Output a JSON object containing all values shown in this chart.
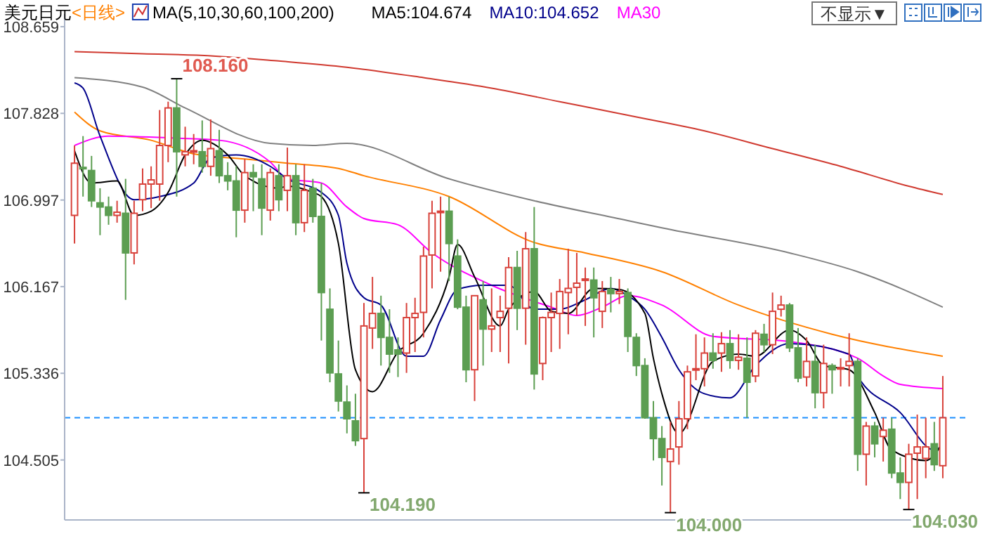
{
  "chart_data": {
    "type": "candlestick",
    "title": "美元日元",
    "subtitle": "<日线>",
    "legend_title": "MA(5,10,30,60,100,200)",
    "legend": "top left",
    "categories": [
      null,
      null,
      null,
      null,
      null,
      null,
      null,
      null,
      null,
      null,
      null,
      null,
      null,
      null,
      null,
      null,
      null,
      null,
      null,
      null,
      null,
      null,
      null,
      null,
      null,
      null,
      null,
      null,
      null,
      null,
      null,
      null,
      null,
      null,
      null,
      null,
      null,
      null,
      null,
      null,
      null,
      null,
      null,
      null,
      null,
      null,
      null,
      null,
      null,
      null,
      null,
      null,
      null,
      null,
      null,
      null,
      null,
      null,
      null,
      null,
      null,
      null,
      null,
      null,
      null,
      null,
      null,
      null,
      null,
      null,
      null,
      null,
      null,
      null,
      null,
      null,
      null,
      null,
      null,
      null,
      null,
      null,
      null,
      null,
      null,
      null,
      null,
      null,
      null,
      null,
      null,
      null,
      null,
      null,
      null,
      null,
      null,
      null,
      null,
      null,
      null,
      null,
      null
    ],
    "ylim": [
      103.93,
      108.78
    ],
    "yticks": [
      108.659,
      107.828,
      106.997,
      106.167,
      105.336,
      104.505
    ],
    "ohlc": [
      [
        106.85,
        107.52,
        106.58,
        107.35
      ],
      [
        107.31,
        107.61,
        107.03,
        107.3
      ],
      [
        107.28,
        107.42,
        106.93,
        106.99
      ],
      [
        106.97,
        107.11,
        106.66,
        106.93
      ],
      [
        106.93,
        107.03,
        106.76,
        106.85
      ],
      [
        106.85,
        106.99,
        106.78,
        106.88
      ],
      [
        106.87,
        107.2,
        106.04,
        106.49
      ],
      [
        106.49,
        106.99,
        106.38,
        106.87
      ],
      [
        107.0,
        107.3,
        106.89,
        107.15
      ],
      [
        107.15,
        107.32,
        106.92,
        107.19
      ],
      [
        107.15,
        107.86,
        106.99,
        107.52
      ],
      [
        107.52,
        107.94,
        107.36,
        107.88
      ],
      [
        107.88,
        108.16,
        107.03,
        107.46
      ],
      [
        107.43,
        107.7,
        107.32,
        107.46
      ],
      [
        107.46,
        107.63,
        107.34,
        107.47
      ],
      [
        107.46,
        107.76,
        107.26,
        107.32
      ],
      [
        107.32,
        107.77,
        107.23,
        107.49
      ],
      [
        107.47,
        107.67,
        107.16,
        107.23
      ],
      [
        107.23,
        107.36,
        107.09,
        107.18
      ],
      [
        107.18,
        107.32,
        106.64,
        106.9
      ],
      [
        106.9,
        107.39,
        106.78,
        107.26
      ],
      [
        107.26,
        107.34,
        106.89,
        107.22
      ],
      [
        107.2,
        107.34,
        106.66,
        106.92
      ],
      [
        106.9,
        107.3,
        106.8,
        107.26
      ],
      [
        107.23,
        107.34,
        106.89,
        107.0
      ],
      [
        107.09,
        107.5,
        106.89,
        107.23
      ],
      [
        107.23,
        107.34,
        106.66,
        106.78
      ],
      [
        106.78,
        107.34,
        106.69,
        107.09
      ],
      [
        107.11,
        107.2,
        106.78,
        106.84
      ],
      [
        106.84,
        107.16,
        105.65,
        106.11
      ],
      [
        105.95,
        106.15,
        105.25,
        105.34
      ],
      [
        105.33,
        105.65,
        104.97,
        105.07
      ],
      [
        105.06,
        105.22,
        104.76,
        104.9
      ],
      [
        104.88,
        105.14,
        104.64,
        104.69
      ],
      [
        104.71,
        106.01,
        104.19,
        105.79
      ],
      [
        105.77,
        106.26,
        105.57,
        105.91
      ],
      [
        105.91,
        106.08,
        105.41,
        105.68
      ],
      [
        105.68,
        105.95,
        105.34,
        105.52
      ],
      [
        105.56,
        105.68,
        105.3,
        105.52
      ],
      [
        105.53,
        106.01,
        105.34,
        105.87
      ],
      [
        105.87,
        106.06,
        105.54,
        105.91
      ],
      [
        105.92,
        106.55,
        105.68,
        106.46
      ],
      [
        106.47,
        106.99,
        106.15,
        106.87
      ],
      [
        106.88,
        107.03,
        106.31,
        106.89
      ],
      [
        106.89,
        107.03,
        106.22,
        106.58
      ],
      [
        106.46,
        106.62,
        105.95,
        105.97
      ],
      [
        105.97,
        106.08,
        105.25,
        105.37
      ],
      [
        105.37,
        106.08,
        105.07,
        106.08
      ],
      [
        106.04,
        106.22,
        105.41,
        105.76
      ],
      [
        105.76,
        106.15,
        105.54,
        105.79
      ],
      [
        105.87,
        106.08,
        105.54,
        105.93
      ],
      [
        105.96,
        106.45,
        105.43,
        106.35
      ],
      [
        106.35,
        106.51,
        105.75,
        105.96
      ],
      [
        105.96,
        106.69,
        105.61,
        106.53
      ],
      [
        106.53,
        106.93,
        105.18,
        105.33
      ],
      [
        105.43,
        105.88,
        105.27,
        105.87
      ],
      [
        105.87,
        106.11,
        105.54,
        105.92
      ],
      [
        105.91,
        106.24,
        105.57,
        106.12
      ],
      [
        106.11,
        106.53,
        105.71,
        106.15
      ],
      [
        106.16,
        106.49,
        105.89,
        106.2
      ],
      [
        106.23,
        106.35,
        105.79,
        106.24
      ],
      [
        106.23,
        106.35,
        105.68,
        106.06
      ],
      [
        105.93,
        106.22,
        105.77,
        106.12
      ],
      [
        106.14,
        106.26,
        105.92,
        106.1
      ],
      [
        106.1,
        106.24,
        106.0,
        106.12
      ],
      [
        106.11,
        106.15,
        105.54,
        105.69
      ],
      [
        105.68,
        105.72,
        105.31,
        105.41
      ],
      [
        105.41,
        105.48,
        104.9,
        104.91
      ],
      [
        104.91,
        105.07,
        104.5,
        104.71
      ],
      [
        104.71,
        104.83,
        104.26,
        104.53
      ],
      [
        104.49,
        104.87,
        104.0,
        104.61
      ],
      [
        104.63,
        105.07,
        104.46,
        104.9
      ],
      [
        104.9,
        105.41,
        104.8,
        105.35
      ],
      [
        105.37,
        105.71,
        105.27,
        105.38
      ],
      [
        105.38,
        105.68,
        105.21,
        105.53
      ],
      [
        105.53,
        105.72,
        105.38,
        105.46
      ],
      [
        105.53,
        105.73,
        105.35,
        105.62
      ],
      [
        105.62,
        105.75,
        105.38,
        105.46
      ],
      [
        105.46,
        105.71,
        105.37,
        105.49
      ],
      [
        105.48,
        105.68,
        104.91,
        105.25
      ],
      [
        105.31,
        105.75,
        105.25,
        105.72
      ],
      [
        105.71,
        105.81,
        105.54,
        105.61
      ],
      [
        105.61,
        106.11,
        105.52,
        105.93
      ],
      [
        105.95,
        106.08,
        105.88,
        105.99
      ],
      [
        105.99,
        106.01,
        105.54,
        105.58
      ],
      [
        105.58,
        105.77,
        105.25,
        105.29
      ],
      [
        105.3,
        105.68,
        105.21,
        105.45
      ],
      [
        105.45,
        105.61,
        105.0,
        105.15
      ],
      [
        105.15,
        105.61,
        105.0,
        105.43
      ],
      [
        105.41,
        105.43,
        105.14,
        105.37
      ],
      [
        105.38,
        105.48,
        105.21,
        105.39
      ],
      [
        105.41,
        105.72,
        105.21,
        105.45
      ],
      [
        105.45,
        105.48,
        104.4,
        104.56
      ],
      [
        104.56,
        104.87,
        104.26,
        104.83
      ],
      [
        104.83,
        104.87,
        104.53,
        104.66
      ],
      [
        104.73,
        104.91,
        104.49,
        104.79
      ],
      [
        104.8,
        104.91,
        104.33,
        104.38
      ],
      [
        104.38,
        104.53,
        104.13,
        104.29
      ],
      [
        104.29,
        104.66,
        104.03,
        104.56
      ],
      [
        104.57,
        104.94,
        104.13,
        104.63
      ],
      [
        104.52,
        104.91,
        104.33,
        104.63
      ],
      [
        104.66,
        104.87,
        104.4,
        104.46
      ],
      [
        104.45,
        105.31,
        104.33,
        104.91
      ]
    ],
    "colors": [
      "#d8413a",
      "#5c9e52",
      "#5c9e52",
      "#5c9e52",
      "#5c9e52",
      "#d8413a",
      "#5c9e52",
      "#d8413a",
      "#d8413a",
      "#d8413a",
      "#d8413a",
      "#d8413a",
      "#5c9e52",
      "#d8413a",
      "#d8413a",
      "#5c9e52",
      "#d8413a",
      "#5c9e52",
      "#5c9e52",
      "#5c9e52",
      "#d8413a",
      "#5c9e52",
      "#5c9e52",
      "#d8413a",
      "#5c9e52",
      "#d8413a",
      "#5c9e52",
      "#d8413a",
      "#5c9e52",
      "#5c9e52",
      "#5c9e52",
      "#5c9e52",
      "#5c9e52",
      "#5c9e52",
      "#d8413a",
      "#d8413a",
      "#5c9e52",
      "#5c9e52",
      "#5c9e52",
      "#d8413a",
      "#d8413a",
      "#d8413a",
      "#d8413a",
      "#d8413a",
      "#5c9e52",
      "#5c9e52",
      "#5c9e52",
      "#d8413a",
      "#5c9e52",
      "#d8413a",
      "#d8413a",
      "#d8413a",
      "#5c9e52",
      "#d8413a",
      "#5c9e52",
      "#d8413a",
      "#d8413a",
      "#d8413a",
      "#d8413a",
      "#d8413a",
      "#d8413a",
      "#5c9e52",
      "#d8413a",
      "#5c9e52",
      "#d8413a",
      "#5c9e52",
      "#5c9e52",
      "#5c9e52",
      "#5c9e52",
      "#5c9e52",
      "#d8413a",
      "#d8413a",
      "#d8413a",
      "#d8413a",
      "#d8413a",
      "#5c9e52",
      "#d8413a",
      "#5c9e52",
      "#d8413a",
      "#5c9e52",
      "#d8413a",
      "#5c9e52",
      "#d8413a",
      "#d8413a",
      "#5c9e52",
      "#5c9e52",
      "#d8413a",
      "#5c9e52",
      "#d8413a",
      "#5c9e52",
      "#d8413a",
      "#d8413a",
      "#5c9e52",
      "#d8413a",
      "#5c9e52",
      "#d8413a",
      "#5c9e52",
      "#5c9e52",
      "#d8413a",
      "#d8413a",
      "#d8413a",
      "#5c9e52",
      "#d8413a"
    ],
    "series": [
      {
        "type": "line",
        "color": "#d03a30",
        "values": [
          108.42,
          null,
          null,
          null,
          null,
          null,
          null,
          null,
          108.4,
          null,
          null,
          null,
          null,
          null,
          null,
          null,
          108.38,
          null,
          null,
          null,
          null,
          null,
          null,
          null,
          108.33,
          null,
          null,
          null,
          null,
          null,
          null,
          null,
          108.27,
          null,
          null,
          null,
          null,
          null,
          null,
          null,
          null,
          108.17,
          null,
          null,
          null,
          null,
          null,
          null,
          null,
          108.07,
          null,
          null,
          null,
          null,
          null,
          null,
          null,
          107.94,
          null,
          null,
          null,
          null,
          null,
          null,
          null,
          107.81,
          null,
          null,
          null,
          null,
          null,
          null,
          null,
          null,
          107.66,
          null,
          null,
          null,
          null,
          null,
          null,
          null,
          107.49,
          null,
          null,
          null,
          null,
          null,
          null,
          null,
          107.32,
          null,
          null,
          null,
          null,
          null,
          null,
          null,
          107.13,
          null,
          null,
          null,
          107.05
        ]
      },
      {
        "type": "line",
        "color": "#808080",
        "values": [
          108.17,
          null,
          null,
          null,
          null,
          null,
          null,
          null,
          108.08,
          null,
          null,
          null,
          null,
          107.88,
          null,
          null,
          null,
          null,
          null,
          null,
          null,
          null,
          null,
          107.54,
          null,
          null,
          null,
          null,
          107.52,
          null,
          null,
          null,
          107.54,
          null,
          null,
          null,
          null,
          null,
          null,
          null,
          null,
          null,
          null,
          null,
          107.2,
          null,
          null,
          null,
          null,
          null,
          null,
          null,
          null,
          null,
          106.99,
          null,
          null,
          null,
          null,
          null,
          null,
          null,
          null,
          null,
          null,
          106.8,
          null,
          null,
          null,
          106.73,
          null,
          null,
          null,
          null,
          null,
          null,
          null,
          null,
          null,
          null,
          null,
          null,
          null,
          null,
          106.49,
          null,
          null,
          null,
          null,
          null,
          null,
          null,
          106.31,
          null,
          null,
          null,
          null,
          null,
          null,
          null,
          null,
          null,
          105.97
        ]
      },
      {
        "type": "line",
        "color": "#ff8000",
        "values": [
          107.84,
          null,
          null,
          107.66,
          null,
          null,
          null,
          null,
          null,
          107.57,
          null,
          null,
          null,
          null,
          107.44,
          null,
          null,
          null,
          null,
          null,
          107.39,
          null,
          null,
          null,
          null,
          107.35,
          null,
          null,
          null,
          null,
          null,
          107.3,
          null,
          null,
          107.23,
          null,
          null,
          null,
          null,
          null,
          null,
          null,
          null,
          null,
          107.03,
          null,
          null,
          null,
          null,
          null,
          null,
          null,
          null,
          null,
          106.59,
          null,
          null,
          null,
          null,
          null,
          106.49,
          null,
          null,
          null,
          null,
          null,
          null,
          null,
          null,
          106.31,
          null,
          null,
          null,
          null,
          null,
          null,
          null,
          null,
          105.99,
          null,
          null,
          null,
          null,
          null,
          null,
          null,
          null,
          null,
          null,
          105.71,
          null,
          null,
          null,
          null,
          null,
          null,
          null,
          null,
          null,
          null,
          null,
          null,
          105.5
        ]
      },
      {
        "type": "line",
        "name": "MA30",
        "color": "#ff00ff",
        "values": [
          107.52,
          null,
          null,
          null,
          107.61,
          null,
          null,
          null,
          null,
          null,
          null,
          null,
          107.59,
          null,
          null,
          null,
          null,
          107.57,
          null,
          null,
          null,
          null,
          null,
          107.36,
          null,
          107.2,
          null,
          null,
          null,
          107.16,
          null,
          null,
          106.93,
          null,
          106.82,
          null,
          null,
          null,
          106.76,
          null,
          null,
          null,
          106.49,
          null,
          null,
          null,
          null,
          null,
          null,
          106.18,
          null,
          null,
          null,
          null,
          null,
          null,
          105.97,
          null,
          null,
          105.89,
          null,
          null,
          105.97,
          null,
          null,
          106.08,
          null,
          null,
          null,
          105.99,
          null,
          null,
          null,
          null,
          null,
          105.69,
          null,
          null,
          null,
          null,
          null,
          null,
          null,
          null,
          105.64,
          null,
          null,
          null,
          null,
          null,
          null,
          null,
          105.48,
          null,
          null,
          105.31,
          null,
          105.23,
          null,
          null,
          null,
          null,
          105.19
        ]
      },
      {
        "type": "line",
        "name": "MA10:104.652",
        "color": "#00008b",
        "values": [
          108.12,
          108.07,
          null,
          107.61,
          null,
          null,
          null,
          107.0,
          null,
          null,
          107.03,
          null,
          null,
          null,
          107.16,
          null,
          107.4,
          null,
          null,
          107.43,
          null,
          null,
          null,
          107.32,
          null,
          107.2,
          null,
          null,
          null,
          107.07,
          null,
          106.85,
          106.39,
          null,
          106.06,
          null,
          105.99,
          null,
          null,
          105.5,
          null,
          105.5,
          null,
          105.85,
          null,
          106.14,
          null,
          null,
          106.18,
          null,
          null,
          106.18,
          null,
          null,
          105.95,
          null,
          null,
          105.95,
          null,
          null,
          106.04,
          null,
          null,
          106.15,
          null,
          106.08,
          null,
          105.95,
          null,
          105.68,
          null,
          105.37,
          null,
          null,
          105.14,
          null,
          null,
          105.1,
          null,
          null,
          105.41,
          null,
          null,
          null,
          105.62,
          null,
          null,
          null,
          null,
          null,
          null,
          105.52,
          105.31,
          null,
          null,
          null,
          null,
          104.96,
          null,
          null,
          null,
          104.6,
          104.65
        ]
      },
      {
        "type": "line",
        "name": "MA5:104.674",
        "color": "#000000",
        "values": [
          107.47,
          null,
          107.16,
          null,
          null,
          107.18,
          null,
          106.85,
          null,
          106.89,
          null,
          107.07,
          null,
          107.43,
          null,
          107.57,
          null,
          null,
          107.43,
          null,
          107.23,
          null,
          null,
          null,
          107.11,
          107.13,
          null,
          null,
          107.07,
          107.03,
          null,
          106.58,
          null,
          105.37,
          null,
          105.16,
          null,
          null,
          105.54,
          null,
          null,
          105.72,
          null,
          null,
          106.26,
          106.57,
          null,
          106.26,
          null,
          null,
          105.79,
          105.95,
          null,
          null,
          106.12,
          null,
          105.93,
          null,
          105.91,
          null,
          null,
          106.15,
          null,
          null,
          106.14,
          null,
          null,
          105.91,
          105.48,
          105.14,
          null,
          104.76,
          null,
          null,
          null,
          105.45,
          null,
          null,
          105.52,
          null,
          105.5,
          null,
          null,
          null,
          105.75,
          null,
          105.65,
          null,
          105.41,
          null,
          null,
          105.37,
          null,
          null,
          104.96,
          null,
          104.6,
          null,
          null,
          null,
          104.5,
          null,
          104.67
        ]
      }
    ],
    "ref_lines": [
      {
        "axis": "y",
        "value": 104.91,
        "color": "#1e90ff",
        "line_style": "dashed"
      }
    ],
    "annotations": [
      "108.160",
      "104.190",
      "104.000",
      "104.030",
      "不显示▼"
    ]
  }
}
